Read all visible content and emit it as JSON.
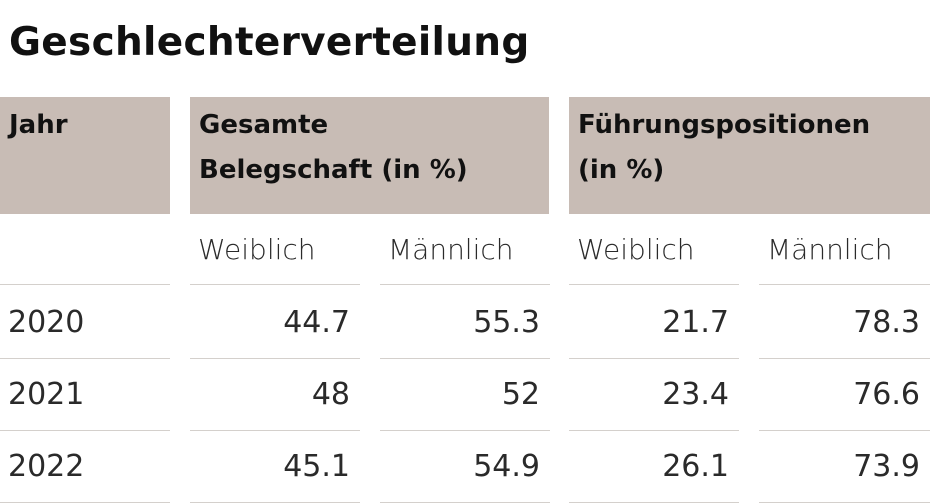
{
  "title": "Geschlechterverteilung",
  "headers": {
    "jahr": "Jahr",
    "gesamt_line1": "Gesamte",
    "gesamt_line2": "Belegschaft (in %)",
    "fuehrung_line1": "Führungspositionen",
    "fuehrung_line2": "(in %)"
  },
  "subheaders": [
    "Weiblich",
    "Männlich",
    "Weiblich",
    "Männlich"
  ],
  "rows": [
    {
      "jahr": "2020",
      "gesamt_w": "44.7",
      "gesamt_m": "55.3",
      "fuehrung_w": "21.7",
      "fuehrung_m": "78.3"
    },
    {
      "jahr": "2021",
      "gesamt_w": "48",
      "gesamt_m": "52",
      "fuehrung_w": "23.4",
      "fuehrung_m": "76.6"
    },
    {
      "jahr": "2022",
      "gesamt_w": "45.1",
      "gesamt_m": "54.9",
      "fuehrung_w": "26.1",
      "fuehrung_m": "73.9"
    }
  ],
  "colors": {
    "header_background": "#c8bcb5",
    "row_divider": "#d4d0cc"
  }
}
